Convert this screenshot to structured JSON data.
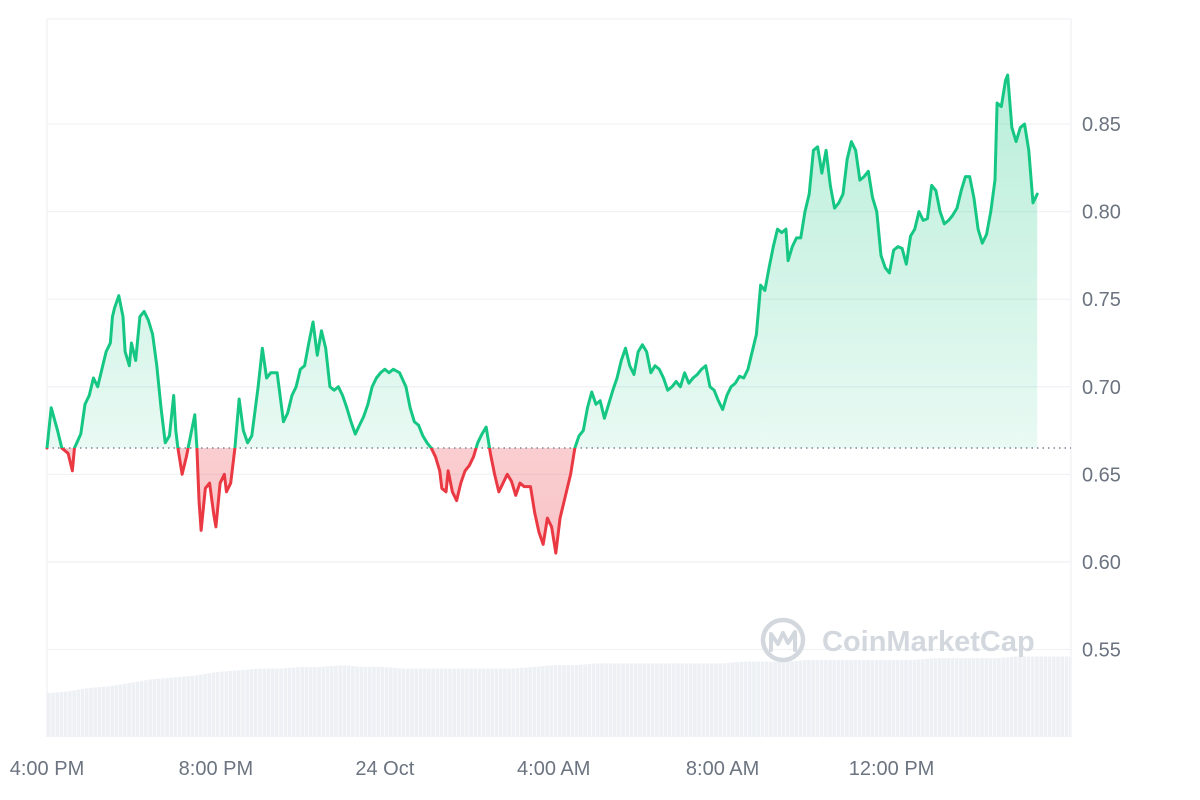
{
  "watermark": {
    "brand": "CoinMarketCap"
  },
  "colors": {
    "up": "#16c784",
    "down": "#ea3943",
    "up_fill": "#16c784",
    "down_fill": "#ea3943",
    "volume": "#edf0f4",
    "grid": "#eff1f4",
    "baseline": "#7a8594",
    "axis_text": "#6b7480"
  },
  "chart_data": {
    "type": "line",
    "baseline": 0.665,
    "grid": true,
    "y_axis_position": "right",
    "ylim": [
      0.5,
      0.91
    ],
    "y_ticks": [
      "0.55",
      "0.60",
      "0.65",
      "0.70",
      "0.75",
      "0.80",
      "0.85"
    ],
    "x_ticks": [
      "4:00 PM",
      "8:00 PM",
      "24 Oct",
      "4:00 AM",
      "8:00 AM",
      "12:00 PM"
    ],
    "x_ticks_hours": [
      0,
      4,
      8,
      12,
      16,
      20
    ],
    "xlim_hours": [
      0,
      24.25
    ],
    "series": [
      {
        "points": [
          [
            0.0,
            0.665
          ],
          [
            0.1,
            0.688
          ],
          [
            0.25,
            0.675
          ],
          [
            0.35,
            0.665
          ],
          [
            0.5,
            0.662
          ],
          [
            0.6,
            0.652
          ],
          [
            0.65,
            0.665
          ],
          [
            0.8,
            0.673
          ],
          [
            0.9,
            0.69
          ],
          [
            1.0,
            0.695
          ],
          [
            1.1,
            0.705
          ],
          [
            1.2,
            0.7
          ],
          [
            1.3,
            0.71
          ],
          [
            1.4,
            0.72
          ],
          [
            1.5,
            0.725
          ],
          [
            1.55,
            0.74
          ],
          [
            1.6,
            0.745
          ],
          [
            1.7,
            0.752
          ],
          [
            1.8,
            0.74
          ],
          [
            1.85,
            0.72
          ],
          [
            1.95,
            0.712
          ],
          [
            2.0,
            0.725
          ],
          [
            2.1,
            0.715
          ],
          [
            2.2,
            0.74
          ],
          [
            2.3,
            0.743
          ],
          [
            2.4,
            0.738
          ],
          [
            2.5,
            0.73
          ],
          [
            2.6,
            0.712
          ],
          [
            2.7,
            0.688
          ],
          [
            2.8,
            0.668
          ],
          [
            2.9,
            0.672
          ],
          [
            3.0,
            0.695
          ],
          [
            3.05,
            0.675
          ],
          [
            3.1,
            0.665
          ],
          [
            3.2,
            0.65
          ],
          [
            3.3,
            0.66
          ],
          [
            3.45,
            0.678
          ],
          [
            3.5,
            0.684
          ],
          [
            3.55,
            0.665
          ],
          [
            3.6,
            0.635
          ],
          [
            3.65,
            0.618
          ],
          [
            3.75,
            0.642
          ],
          [
            3.85,
            0.645
          ],
          [
            3.95,
            0.627
          ],
          [
            4.0,
            0.62
          ],
          [
            4.1,
            0.645
          ],
          [
            4.2,
            0.65
          ],
          [
            4.25,
            0.64
          ],
          [
            4.35,
            0.645
          ],
          [
            4.45,
            0.665
          ],
          [
            4.55,
            0.693
          ],
          [
            4.65,
            0.675
          ],
          [
            4.75,
            0.668
          ],
          [
            4.85,
            0.672
          ],
          [
            5.0,
            0.7
          ],
          [
            5.1,
            0.722
          ],
          [
            5.2,
            0.705
          ],
          [
            5.3,
            0.708
          ],
          [
            5.45,
            0.708
          ],
          [
            5.6,
            0.68
          ],
          [
            5.7,
            0.685
          ],
          [
            5.8,
            0.695
          ],
          [
            5.9,
            0.7
          ],
          [
            6.0,
            0.71
          ],
          [
            6.1,
            0.712
          ],
          [
            6.2,
            0.725
          ],
          [
            6.3,
            0.737
          ],
          [
            6.4,
            0.718
          ],
          [
            6.5,
            0.732
          ],
          [
            6.6,
            0.722
          ],
          [
            6.7,
            0.7
          ],
          [
            6.8,
            0.698
          ],
          [
            6.9,
            0.7
          ],
          [
            7.0,
            0.695
          ],
          [
            7.1,
            0.688
          ],
          [
            7.2,
            0.68
          ],
          [
            7.3,
            0.673
          ],
          [
            7.4,
            0.678
          ],
          [
            7.5,
            0.683
          ],
          [
            7.6,
            0.69
          ],
          [
            7.7,
            0.7
          ],
          [
            7.8,
            0.705
          ],
          [
            7.9,
            0.708
          ],
          [
            8.0,
            0.71
          ],
          [
            8.1,
            0.708
          ],
          [
            8.2,
            0.71
          ],
          [
            8.35,
            0.708
          ],
          [
            8.5,
            0.7
          ],
          [
            8.6,
            0.688
          ],
          [
            8.7,
            0.68
          ],
          [
            8.8,
            0.678
          ],
          [
            8.9,
            0.672
          ],
          [
            9.0,
            0.668
          ],
          [
            9.1,
            0.665
          ],
          [
            9.2,
            0.66
          ],
          [
            9.3,
            0.652
          ],
          [
            9.35,
            0.642
          ],
          [
            9.45,
            0.64
          ],
          [
            9.5,
            0.652
          ],
          [
            9.6,
            0.64
          ],
          [
            9.7,
            0.635
          ],
          [
            9.8,
            0.645
          ],
          [
            9.9,
            0.652
          ],
          [
            10.0,
            0.655
          ],
          [
            10.1,
            0.66
          ],
          [
            10.2,
            0.668
          ],
          [
            10.3,
            0.673
          ],
          [
            10.4,
            0.677
          ],
          [
            10.5,
            0.662
          ],
          [
            10.6,
            0.65
          ],
          [
            10.7,
            0.64
          ],
          [
            10.8,
            0.645
          ],
          [
            10.9,
            0.65
          ],
          [
            11.0,
            0.646
          ],
          [
            11.1,
            0.638
          ],
          [
            11.2,
            0.645
          ],
          [
            11.3,
            0.643
          ],
          [
            11.45,
            0.643
          ],
          [
            11.55,
            0.628
          ],
          [
            11.65,
            0.617
          ],
          [
            11.75,
            0.61
          ],
          [
            11.85,
            0.625
          ],
          [
            11.95,
            0.62
          ],
          [
            12.05,
            0.605
          ],
          [
            12.15,
            0.625
          ],
          [
            12.3,
            0.64
          ],
          [
            12.4,
            0.65
          ],
          [
            12.5,
            0.665
          ],
          [
            12.6,
            0.672
          ],
          [
            12.7,
            0.675
          ],
          [
            12.8,
            0.688
          ],
          [
            12.9,
            0.697
          ],
          [
            13.0,
            0.69
          ],
          [
            13.1,
            0.692
          ],
          [
            13.2,
            0.682
          ],
          [
            13.3,
            0.69
          ],
          [
            13.4,
            0.698
          ],
          [
            13.5,
            0.705
          ],
          [
            13.6,
            0.715
          ],
          [
            13.7,
            0.722
          ],
          [
            13.8,
            0.712
          ],
          [
            13.9,
            0.707
          ],
          [
            14.0,
            0.72
          ],
          [
            14.1,
            0.724
          ],
          [
            14.2,
            0.72
          ],
          [
            14.3,
            0.708
          ],
          [
            14.4,
            0.712
          ],
          [
            14.5,
            0.71
          ],
          [
            14.6,
            0.705
          ],
          [
            14.7,
            0.698
          ],
          [
            14.8,
            0.7
          ],
          [
            14.9,
            0.703
          ],
          [
            15.0,
            0.7
          ],
          [
            15.1,
            0.708
          ],
          [
            15.2,
            0.702
          ],
          [
            15.3,
            0.705
          ],
          [
            15.4,
            0.707
          ],
          [
            15.5,
            0.71
          ],
          [
            15.6,
            0.712
          ],
          [
            15.7,
            0.7
          ],
          [
            15.8,
            0.698
          ],
          [
            15.9,
            0.692
          ],
          [
            16.0,
            0.687
          ],
          [
            16.1,
            0.695
          ],
          [
            16.2,
            0.7
          ],
          [
            16.3,
            0.702
          ],
          [
            16.4,
            0.706
          ],
          [
            16.5,
            0.705
          ],
          [
            16.6,
            0.71
          ],
          [
            16.7,
            0.72
          ],
          [
            16.8,
            0.73
          ],
          [
            16.9,
            0.758
          ],
          [
            17.0,
            0.755
          ],
          [
            17.1,
            0.768
          ],
          [
            17.2,
            0.78
          ],
          [
            17.3,
            0.79
          ],
          [
            17.4,
            0.788
          ],
          [
            17.5,
            0.79
          ],
          [
            17.55,
            0.772
          ],
          [
            17.65,
            0.78
          ],
          [
            17.75,
            0.785
          ],
          [
            17.85,
            0.785
          ],
          [
            17.95,
            0.8
          ],
          [
            18.05,
            0.81
          ],
          [
            18.15,
            0.835
          ],
          [
            18.25,
            0.837
          ],
          [
            18.35,
            0.822
          ],
          [
            18.45,
            0.835
          ],
          [
            18.55,
            0.815
          ],
          [
            18.65,
            0.802
          ],
          [
            18.75,
            0.805
          ],
          [
            18.85,
            0.81
          ],
          [
            18.95,
            0.83
          ],
          [
            19.05,
            0.84
          ],
          [
            19.15,
            0.835
          ],
          [
            19.25,
            0.818
          ],
          [
            19.35,
            0.82
          ],
          [
            19.45,
            0.823
          ],
          [
            19.55,
            0.808
          ],
          [
            19.65,
            0.8
          ],
          [
            19.75,
            0.775
          ],
          [
            19.85,
            0.768
          ],
          [
            19.95,
            0.765
          ],
          [
            20.05,
            0.778
          ],
          [
            20.15,
            0.78
          ],
          [
            20.25,
            0.779
          ],
          [
            20.35,
            0.77
          ],
          [
            20.45,
            0.786
          ],
          [
            20.55,
            0.79
          ],
          [
            20.65,
            0.8
          ],
          [
            20.75,
            0.795
          ],
          [
            20.85,
            0.796
          ],
          [
            20.95,
            0.815
          ],
          [
            21.05,
            0.812
          ],
          [
            21.15,
            0.8
          ],
          [
            21.25,
            0.793
          ],
          [
            21.35,
            0.795
          ],
          [
            21.45,
            0.798
          ],
          [
            21.55,
            0.802
          ],
          [
            21.65,
            0.812
          ],
          [
            21.75,
            0.82
          ],
          [
            21.85,
            0.82
          ],
          [
            21.95,
            0.808
          ],
          [
            22.05,
            0.79
          ],
          [
            22.15,
            0.782
          ],
          [
            22.25,
            0.787
          ],
          [
            22.35,
            0.8
          ],
          [
            22.45,
            0.818
          ],
          [
            22.5,
            0.862
          ],
          [
            22.6,
            0.86
          ],
          [
            22.7,
            0.875
          ],
          [
            22.75,
            0.878
          ],
          [
            22.85,
            0.848
          ],
          [
            22.95,
            0.84
          ],
          [
            23.05,
            0.848
          ],
          [
            23.15,
            0.85
          ],
          [
            23.25,
            0.835
          ],
          [
            23.35,
            0.805
          ],
          [
            23.45,
            0.81
          ]
        ]
      }
    ],
    "volume": [
      [
        0.0,
        0.525
      ],
      [
        0.5,
        0.526
      ],
      [
        1.0,
        0.528
      ],
      [
        1.5,
        0.529
      ],
      [
        2.0,
        0.531
      ],
      [
        2.5,
        0.533
      ],
      [
        3.0,
        0.534
      ],
      [
        3.5,
        0.535
      ],
      [
        4.0,
        0.537
      ],
      [
        4.5,
        0.538
      ],
      [
        5.0,
        0.539
      ],
      [
        5.5,
        0.539
      ],
      [
        6.0,
        0.54
      ],
      [
        6.5,
        0.54
      ],
      [
        7.0,
        0.541
      ],
      [
        7.5,
        0.54
      ],
      [
        8.0,
        0.54
      ],
      [
        8.5,
        0.539
      ],
      [
        9.0,
        0.539
      ],
      [
        9.5,
        0.539
      ],
      [
        10.0,
        0.539
      ],
      [
        10.5,
        0.539
      ],
      [
        11.0,
        0.539
      ],
      [
        11.5,
        0.54
      ],
      [
        12.0,
        0.541
      ],
      [
        12.5,
        0.541
      ],
      [
        13.0,
        0.542
      ],
      [
        13.5,
        0.542
      ],
      [
        14.0,
        0.542
      ],
      [
        14.5,
        0.542
      ],
      [
        15.0,
        0.542
      ],
      [
        15.5,
        0.542
      ],
      [
        16.0,
        0.542
      ],
      [
        16.5,
        0.543
      ],
      [
        17.0,
        0.543
      ],
      [
        17.5,
        0.543
      ],
      [
        18.0,
        0.544
      ],
      [
        18.5,
        0.544
      ],
      [
        19.0,
        0.544
      ],
      [
        19.5,
        0.544
      ],
      [
        20.0,
        0.544
      ],
      [
        20.5,
        0.544
      ],
      [
        21.0,
        0.545
      ],
      [
        21.5,
        0.545
      ],
      [
        22.0,
        0.545
      ],
      [
        22.5,
        0.545
      ],
      [
        23.0,
        0.546
      ],
      [
        23.5,
        0.546
      ],
      [
        24.0,
        0.546
      ],
      [
        24.25,
        0.546
      ]
    ]
  }
}
